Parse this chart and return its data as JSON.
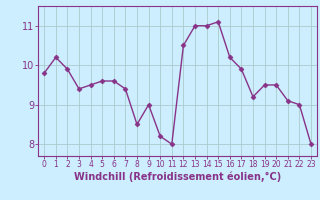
{
  "x": [
    0,
    1,
    2,
    3,
    4,
    5,
    6,
    7,
    8,
    9,
    10,
    11,
    12,
    13,
    14,
    15,
    16,
    17,
    18,
    19,
    20,
    21,
    22,
    23
  ],
  "y": [
    9.8,
    10.2,
    9.9,
    9.4,
    9.5,
    9.6,
    9.6,
    9.4,
    8.5,
    9.0,
    8.2,
    8.0,
    10.5,
    11.0,
    11.0,
    11.1,
    10.2,
    9.9,
    9.2,
    9.5,
    9.5,
    9.1,
    9.0,
    8.0
  ],
  "line_color": "#883388",
  "marker": "D",
  "marker_size": 2.5,
  "bg_color": "#cceeff",
  "grid_color": "#aacccc",
  "xlabel": "Windchill (Refroidissement éolien,°C)",
  "xlabel_color": "#883388",
  "ylim": [
    7.7,
    11.5
  ],
  "yticks": [
    8,
    9,
    10,
    11
  ],
  "xticks": [
    0,
    1,
    2,
    3,
    4,
    5,
    6,
    7,
    8,
    9,
    10,
    11,
    12,
    13,
    14,
    15,
    16,
    17,
    18,
    19,
    20,
    21,
    22,
    23
  ],
  "tick_color": "#883388",
  "ytick_fontsize": 7,
  "xtick_fontsize": 5.5,
  "xlabel_fontsize": 7,
  "linewidth": 1.0
}
